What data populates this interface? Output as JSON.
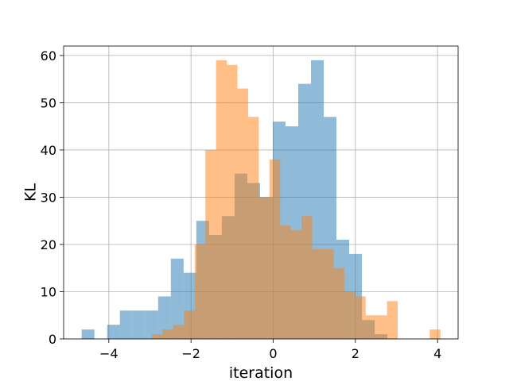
{
  "chart_data": {
    "type": "bar",
    "subtype": "overlapping-histogram",
    "title": "",
    "xlabel": "iteration",
    "ylabel": "KL",
    "xlim": [
      -5.1,
      4.5
    ],
    "ylim": [
      0,
      62
    ],
    "xticks": [
      -4,
      -2,
      0,
      2,
      4
    ],
    "xtick_labels": [
      "−4",
      "−2",
      "0",
      "2",
      "4"
    ],
    "yticks": [
      0,
      10,
      20,
      30,
      40,
      50,
      60
    ],
    "ytick_labels": [
      "0",
      "10",
      "20",
      "30",
      "40",
      "50",
      "60"
    ],
    "grid": true,
    "legend": "none",
    "series": [
      {
        "color": "#1f77b4",
        "alpha": 0.5,
        "bin_edges": [
          -4.66,
          -4.35,
          -4.04,
          -3.73,
          -3.42,
          -3.11,
          -2.8,
          -2.49,
          -2.18,
          -1.87,
          -1.56,
          -1.25,
          -0.94,
          -0.63,
          -0.32,
          -0.01,
          0.3,
          0.61,
          0.92,
          1.23,
          1.54,
          1.85,
          2.16,
          2.47,
          2.78
        ],
        "counts": [
          2,
          0,
          3,
          6,
          6,
          6,
          9,
          17,
          14,
          25,
          22,
          26,
          35,
          33,
          30,
          46,
          45,
          54,
          59,
          47,
          21,
          18,
          4,
          1
        ]
      },
      {
        "color": "#ff7f0e",
        "alpha": 0.5,
        "bin_edges": [
          -2.95,
          -2.69,
          -2.43,
          -2.17,
          -1.91,
          -1.65,
          -1.39,
          -1.13,
          -0.87,
          -0.61,
          -0.35,
          -0.09,
          0.17,
          0.43,
          0.69,
          0.95,
          1.21,
          1.47,
          1.73,
          1.99,
          2.25,
          2.51,
          2.77,
          3.03,
          3.29,
          3.55,
          3.81,
          4.07
        ],
        "counts": [
          1,
          2,
          3,
          6,
          20,
          40,
          59,
          58,
          53,
          47,
          30,
          38,
          24,
          23,
          26,
          19,
          19,
          15,
          10,
          9,
          5,
          5,
          8,
          0,
          0,
          0,
          2
        ]
      }
    ]
  }
}
